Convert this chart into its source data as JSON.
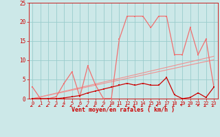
{
  "x": [
    0,
    1,
    2,
    3,
    4,
    5,
    6,
    7,
    8,
    9,
    10,
    11,
    12,
    13,
    14,
    15,
    16,
    17,
    18,
    19,
    20,
    21,
    22,
    23
  ],
  "rafales": [
    3,
    0,
    0,
    0.5,
    4,
    7,
    0.5,
    8.5,
    3.5,
    0,
    0,
    15.5,
    21.5,
    21.5,
    21.5,
    18.5,
    21.5,
    21.5,
    11.5,
    11.5,
    18.5,
    11.5,
    15.5,
    3
  ],
  "moyen": [
    0,
    0,
    0,
    0,
    0.2,
    0.5,
    0.8,
    1.5,
    2.0,
    2.5,
    3.0,
    3.5,
    4.0,
    3.5,
    4.0,
    3.5,
    3.5,
    5.5,
    1,
    0,
    0.3,
    1.5,
    0.3,
    3
  ],
  "trend1": [
    0,
    0.48,
    0.96,
    1.44,
    1.92,
    2.4,
    2.88,
    3.36,
    3.84,
    4.32,
    4.8,
    5.28,
    5.76,
    6.24,
    6.72,
    7.2,
    7.68,
    8.16,
    8.64,
    9.12,
    9.6,
    10.08,
    10.56,
    11.04
  ],
  "trend2": [
    0,
    0.44,
    0.88,
    1.32,
    1.76,
    2.2,
    2.64,
    3.08,
    3.52,
    3.96,
    4.4,
    4.84,
    5.28,
    5.72,
    6.16,
    6.6,
    7.04,
    7.48,
    7.92,
    8.36,
    8.8,
    9.24,
    9.68,
    10.12
  ],
  "ylim": [
    0,
    25
  ],
  "xlim": [
    -0.5,
    23.5
  ],
  "bg_color": "#cce8e8",
  "grid_color": "#99cccc",
  "line_color_rafales": "#f07070",
  "line_color_moyen": "#cc0000",
  "trend_color": "#f09090",
  "xlabel": "Vent moyen/en rafales ( km/h )",
  "xlabel_color": "#cc0000",
  "tick_color": "#cc0000",
  "yticks": [
    0,
    5,
    10,
    15,
    20,
    25
  ],
  "arrow_angles": [
    225,
    225,
    225,
    225,
    225,
    225,
    225,
    225,
    225,
    225,
    225,
    225,
    225,
    225,
    225,
    225,
    270,
    225,
    225,
    315,
    225,
    0,
    225,
    225
  ]
}
